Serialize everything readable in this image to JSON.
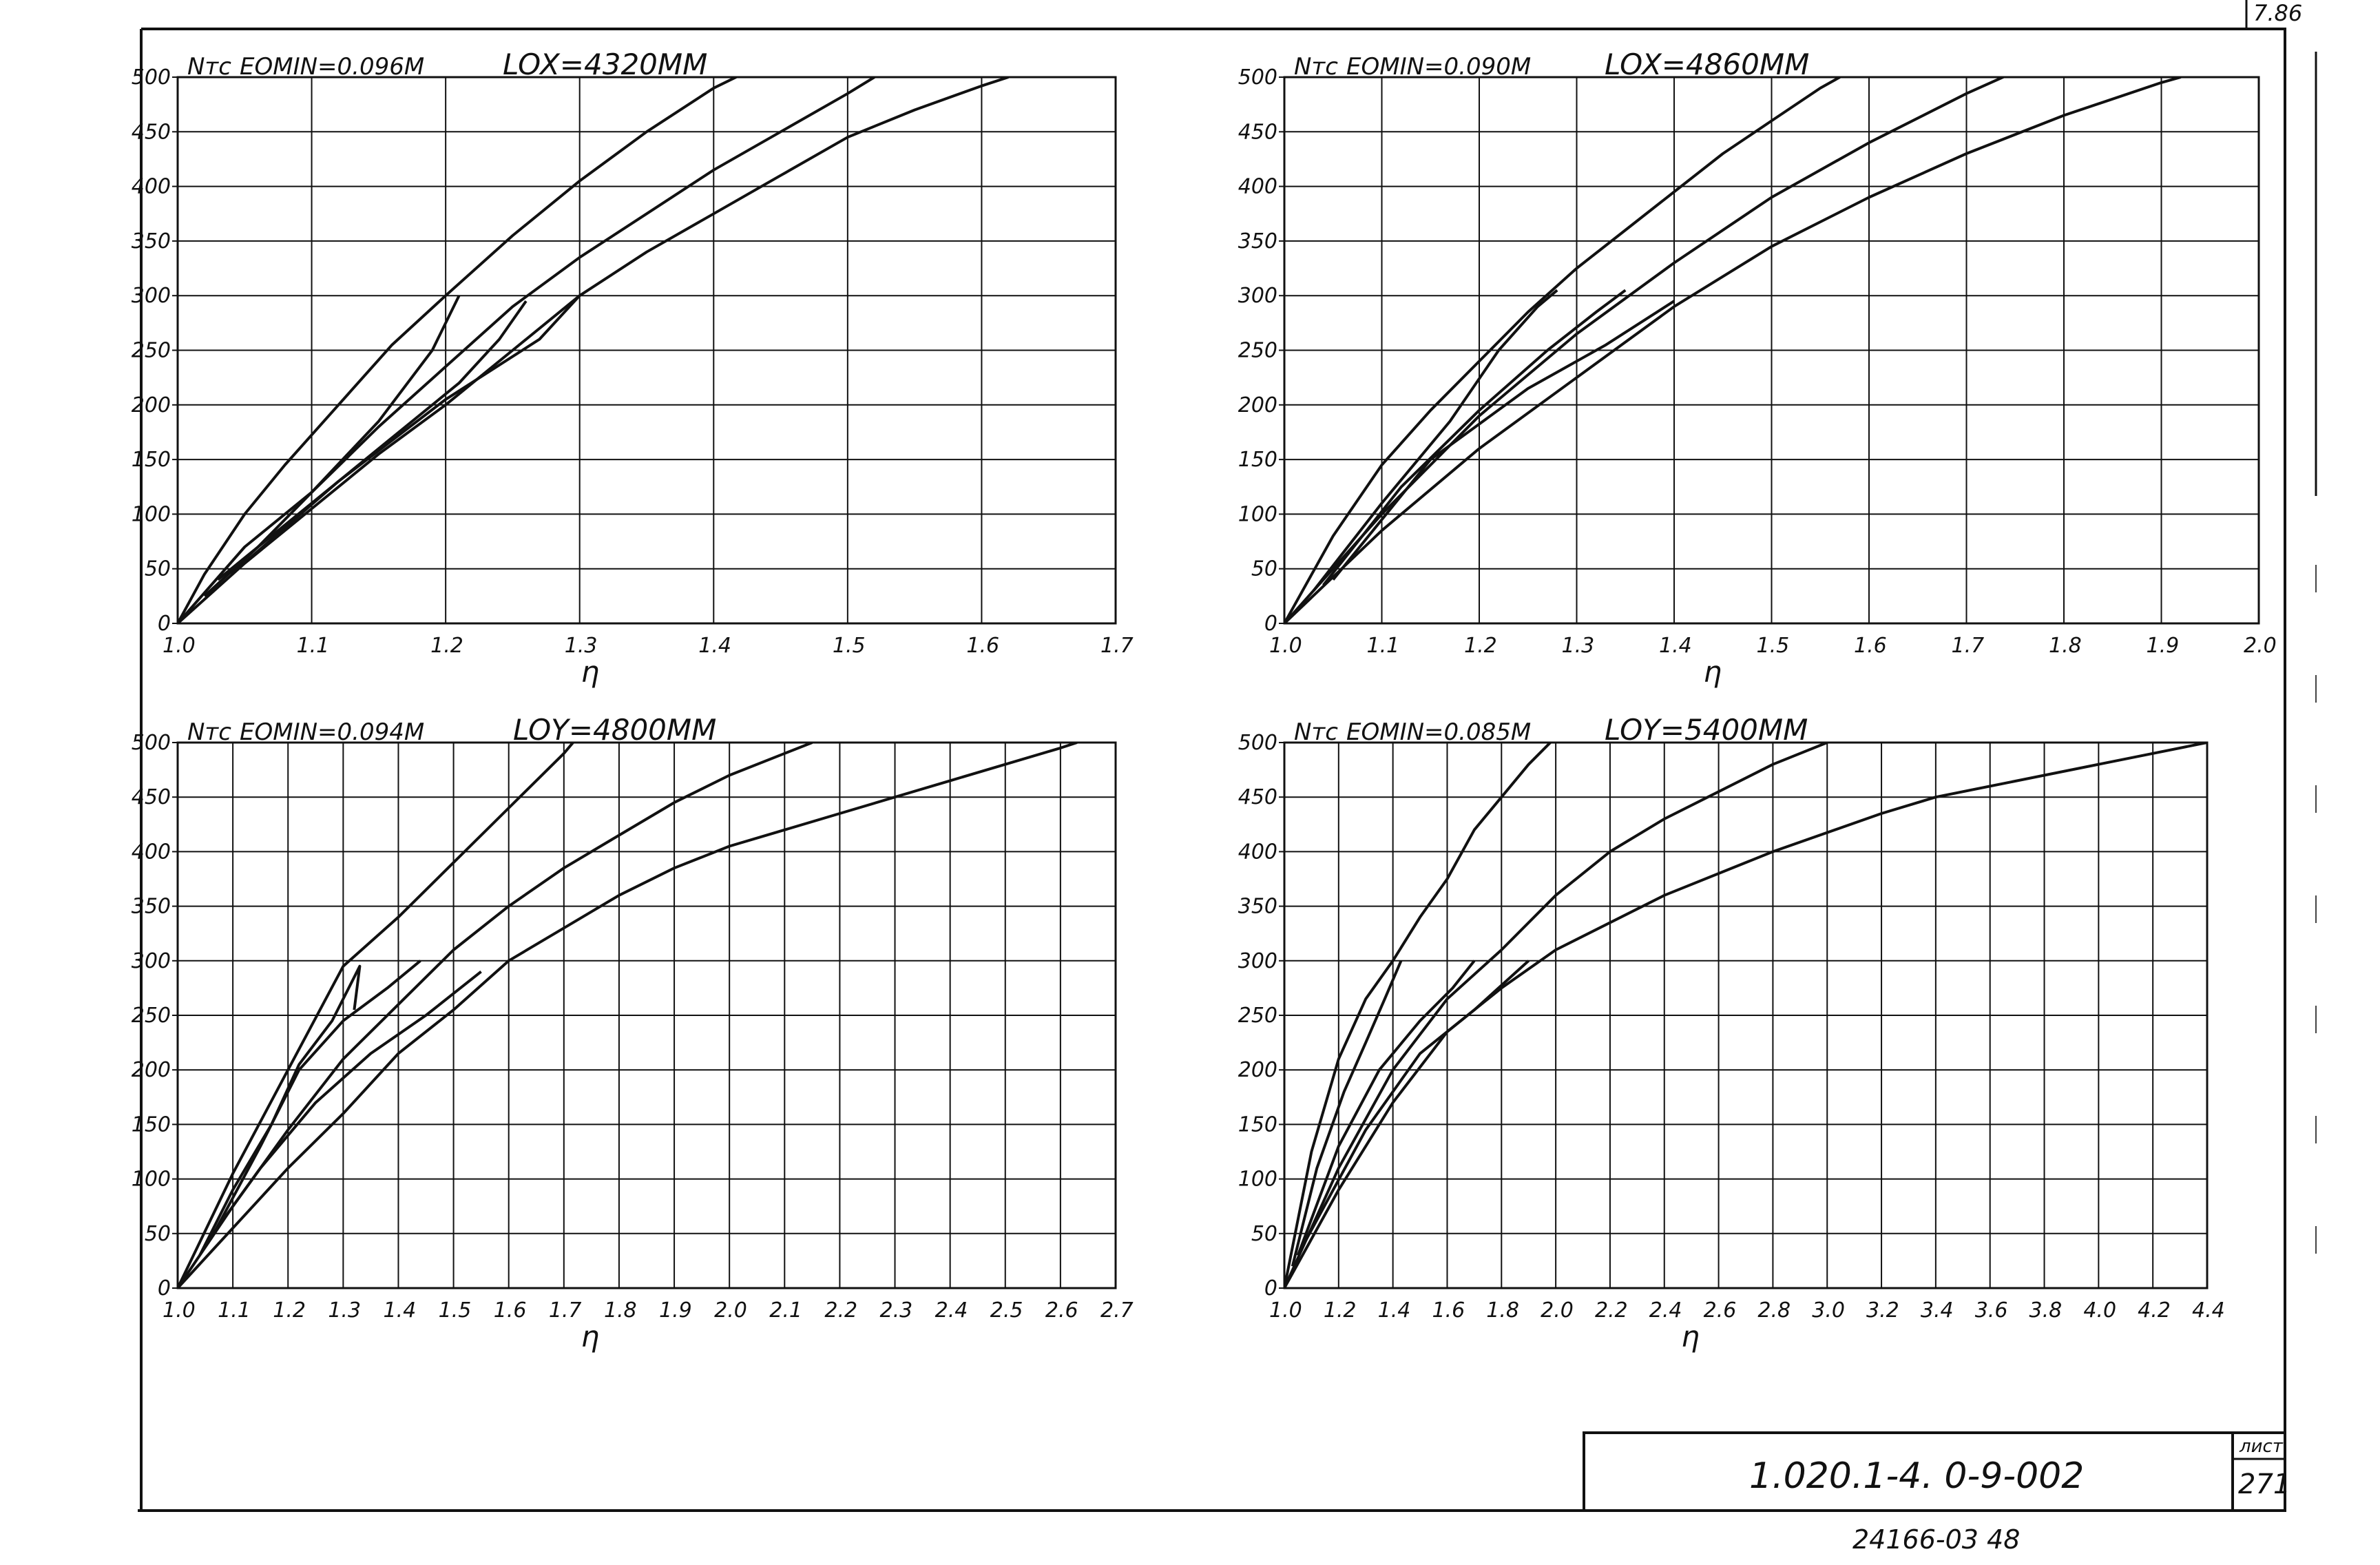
{
  "sheet": {
    "corner_mark": "7.86",
    "doc_code": "1.020.1-4. 0-9-002",
    "sheet_label": "лист",
    "sheet_number": "271",
    "archive_number": "24166-03   48"
  },
  "chart_data": [
    {
      "type": "line",
      "ylabel": "Nтс",
      "xlabel": "η",
      "eomin": "EOMIN=0.096М",
      "title": "LOX=4320ММ",
      "xlim": [
        1.0,
        1.7
      ],
      "ylim": [
        0,
        500
      ],
      "xticks": [
        "1.0",
        "1.1",
        "1.2",
        "1.3",
        "1.4",
        "1.5",
        "1.6",
        "1.7"
      ],
      "yticks": [
        "0",
        "50",
        "100",
        "150",
        "200",
        "250",
        "300",
        "350",
        "400",
        "450",
        "500"
      ],
      "grid": true,
      "series": [
        {
          "x": [
            1.0,
            1.02,
            1.05,
            1.08,
            1.12,
            1.16,
            1.2,
            1.25,
            1.3,
            1.35,
            1.4,
            1.45,
            1.47
          ],
          "y": [
            0,
            45,
            100,
            145,
            200,
            255,
            300,
            355,
            405,
            450,
            490,
            520,
            535
          ]
        },
        {
          "x": [
            1.0,
            1.05,
            1.1,
            1.15,
            1.2,
            1.25,
            1.3,
            1.35,
            1.4,
            1.45,
            1.5,
            1.52
          ],
          "y": [
            0,
            70,
            120,
            180,
            235,
            290,
            335,
            375,
            415,
            450,
            485,
            500
          ]
        },
        {
          "x": [
            1.0,
            1.05,
            1.1,
            1.15,
            1.2,
            1.25,
            1.3,
            1.35,
            1.4,
            1.45,
            1.5,
            1.55,
            1.6,
            1.62
          ],
          "y": [
            0,
            55,
            105,
            155,
            200,
            250,
            300,
            340,
            375,
            410,
            445,
            470,
            492,
            500
          ]
        },
        {
          "x": [
            1.02,
            1.06,
            1.1,
            1.15,
            1.19,
            1.21
          ],
          "y": [
            25,
            70,
            120,
            185,
            250,
            300
          ]
        },
        {
          "x": [
            1.03,
            1.1,
            1.16,
            1.21,
            1.24,
            1.26
          ],
          "y": [
            40,
            110,
            170,
            220,
            260,
            295
          ]
        },
        {
          "x": [
            1.04,
            1.12,
            1.2,
            1.27,
            1.3
          ],
          "y": [
            45,
            130,
            205,
            260,
            300
          ]
        }
      ]
    },
    {
      "type": "line",
      "ylabel": "Nтс",
      "xlabel": "η",
      "eomin": "EOMIN=0.090М",
      "title": "LOX=4860ММ",
      "xlim": [
        1.0,
        2.0
      ],
      "ylim": [
        0,
        500
      ],
      "xticks": [
        "1.0",
        "1.1",
        "1.2",
        "1.3",
        "1.4",
        "1.5",
        "1.6",
        "1.7",
        "1.8",
        "1.9",
        "2.0"
      ],
      "yticks": [
        "0",
        "50",
        "100",
        "150",
        "200",
        "250",
        "300",
        "350",
        "400",
        "450",
        "500"
      ],
      "grid": true,
      "series": [
        {
          "x": [
            1.0,
            1.05,
            1.1,
            1.15,
            1.2,
            1.25,
            1.3,
            1.35,
            1.4,
            1.45,
            1.5,
            1.55,
            1.6,
            1.62
          ],
          "y": [
            0,
            80,
            145,
            195,
            240,
            285,
            325,
            360,
            395,
            430,
            460,
            490,
            515,
            525
          ]
        },
        {
          "x": [
            1.0,
            1.1,
            1.2,
            1.3,
            1.4,
            1.5,
            1.6,
            1.7,
            1.75
          ],
          "y": [
            0,
            100,
            190,
            265,
            330,
            390,
            440,
            485,
            505
          ]
        },
        {
          "x": [
            1.0,
            1.1,
            1.2,
            1.3,
            1.4,
            1.5,
            1.6,
            1.7,
            1.8,
            1.9,
            1.92
          ],
          "y": [
            0,
            85,
            160,
            225,
            290,
            345,
            390,
            430,
            465,
            495,
            500
          ]
        },
        {
          "x": [
            1.03,
            1.1,
            1.17,
            1.22,
            1.26,
            1.28
          ],
          "y": [
            30,
            110,
            185,
            250,
            290,
            305
          ]
        },
        {
          "x": [
            1.04,
            1.12,
            1.2,
            1.27,
            1.32,
            1.35
          ],
          "y": [
            35,
            125,
            195,
            250,
            285,
            305
          ]
        },
        {
          "x": [
            1.05,
            1.15,
            1.25,
            1.33,
            1.4
          ],
          "y": [
            40,
            150,
            215,
            255,
            295
          ]
        }
      ]
    },
    {
      "type": "line",
      "ylabel": "Nтс",
      "xlabel": "η",
      "eomin": "EOMIN=0.094М",
      "title": "LOY=4800ММ",
      "xlim": [
        1.0,
        2.7
      ],
      "ylim": [
        0,
        500
      ],
      "xticks": [
        "1.0",
        "1.1",
        "1.2",
        "1.3",
        "1.4",
        "1.5",
        "1.6",
        "1.7",
        "1.8",
        "1.9",
        "2.0",
        "2.1",
        "2.2",
        "2.3",
        "2.4",
        "2.5",
        "2.6",
        "2.7"
      ],
      "yticks": [
        "0",
        "50",
        "100",
        "150",
        "200",
        "250",
        "300",
        "350",
        "400",
        "450",
        "500"
      ],
      "grid": true,
      "series": [
        {
          "x": [
            1.0,
            1.1,
            1.2,
            1.3,
            1.4,
            1.5,
            1.6,
            1.7,
            1.75
          ],
          "y": [
            0,
            105,
            200,
            295,
            340,
            390,
            440,
            490,
            520
          ]
        },
        {
          "x": [
            1.0,
            1.1,
            1.2,
            1.3,
            1.4,
            1.5,
            1.6,
            1.7,
            1.8,
            1.9,
            2.0,
            2.1,
            2.15
          ],
          "y": [
            0,
            75,
            145,
            210,
            260,
            310,
            350,
            385,
            415,
            445,
            470,
            490,
            500
          ]
        },
        {
          "x": [
            1.0,
            1.1,
            1.2,
            1.3,
            1.4,
            1.5,
            1.6,
            1.7,
            1.8,
            1.9,
            2.0,
            2.2,
            2.4,
            2.6,
            2.63
          ],
          "y": [
            0,
            55,
            110,
            160,
            215,
            255,
            300,
            330,
            360,
            385,
            405,
            435,
            465,
            495,
            500
          ]
        },
        {
          "x": [
            1.04,
            1.1,
            1.17,
            1.22,
            1.28,
            1.33,
            1.32
          ],
          "y": [
            30,
            90,
            150,
            205,
            245,
            295,
            255
          ]
        },
        {
          "x": [
            1.06,
            1.15,
            1.22,
            1.3,
            1.38,
            1.44
          ],
          "y": [
            45,
            130,
            200,
            245,
            275,
            300
          ]
        },
        {
          "x": [
            1.05,
            1.15,
            1.25,
            1.35,
            1.45,
            1.55
          ],
          "y": [
            40,
            110,
            170,
            215,
            250,
            290
          ]
        }
      ]
    },
    {
      "type": "line",
      "ylabel": "Nтс",
      "xlabel": "η",
      "eomin": "EOMIN=0.085М",
      "title": "LOY=5400ММ",
      "xlim": [
        1.0,
        4.4
      ],
      "ylim": [
        0,
        500
      ],
      "xticks": [
        "1.0",
        "1.2",
        "1.4",
        "1.6",
        "1.8",
        "2.0",
        "2.2",
        "2.4",
        "2.6",
        "2.8",
        "3.0",
        "3.2",
        "3.4",
        "3.6",
        "3.8",
        "4.0",
        "4.2",
        "4.4"
      ],
      "yticks": [
        "0",
        "50",
        "100",
        "150",
        "200",
        "250",
        "300",
        "350",
        "400",
        "450",
        "500"
      ],
      "grid": true,
      "series": [
        {
          "x": [
            1.0,
            1.1,
            1.2,
            1.3,
            1.4,
            1.5,
            1.6,
            1.7,
            1.8,
            1.9,
            2.0,
            2.05
          ],
          "y": [
            0,
            125,
            210,
            265,
            300,
            340,
            375,
            420,
            450,
            480,
            505,
            520
          ]
        },
        {
          "x": [
            1.0,
            1.2,
            1.4,
            1.6,
            1.8,
            2.0,
            2.2,
            2.4,
            2.6,
            2.8,
            3.0,
            3.05
          ],
          "y": [
            0,
            110,
            200,
            265,
            310,
            360,
            400,
            430,
            455,
            480,
            500,
            505
          ]
        },
        {
          "x": [
            1.0,
            1.2,
            1.4,
            1.6,
            1.8,
            2.0,
            2.4,
            2.8,
            3.2,
            3.4,
            3.8,
            4.2,
            4.4
          ],
          "y": [
            0,
            90,
            170,
            235,
            275,
            310,
            360,
            400,
            435,
            450,
            470,
            490,
            500
          ]
        },
        {
          "x": [
            1.03,
            1.12,
            1.22,
            1.3,
            1.37,
            1.43
          ],
          "y": [
            20,
            110,
            180,
            225,
            265,
            300
          ]
        },
        {
          "x": [
            1.05,
            1.2,
            1.35,
            1.5,
            1.62,
            1.7
          ],
          "y": [
            30,
            130,
            200,
            245,
            275,
            300
          ]
        },
        {
          "x": [
            1.06,
            1.3,
            1.5,
            1.7,
            1.9
          ],
          "y": [
            35,
            145,
            215,
            255,
            300
          ]
        }
      ]
    }
  ]
}
